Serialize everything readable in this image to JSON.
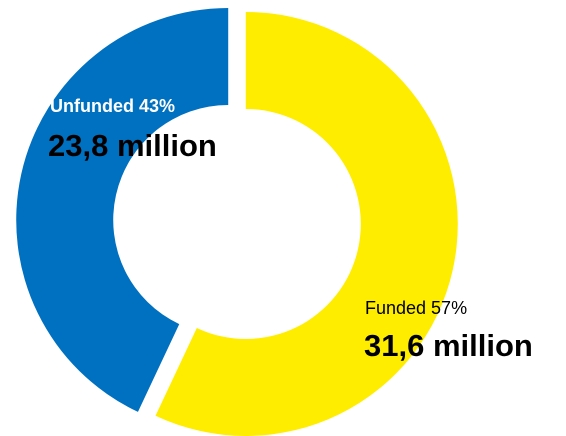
{
  "chart_data": {
    "type": "pie",
    "donut": true,
    "slices": [
      {
        "label": "Unfunded",
        "percent": 43,
        "percent_text": "Unfunded 43%",
        "value_text": "23,8 million",
        "value": 23.8,
        "color": "#0070C0"
      },
      {
        "label": "Funded",
        "percent": 57,
        "percent_text": "Funded 57%",
        "value_text": "31,6 million",
        "value": 31.6,
        "color": "#FFED00"
      }
    ]
  }
}
